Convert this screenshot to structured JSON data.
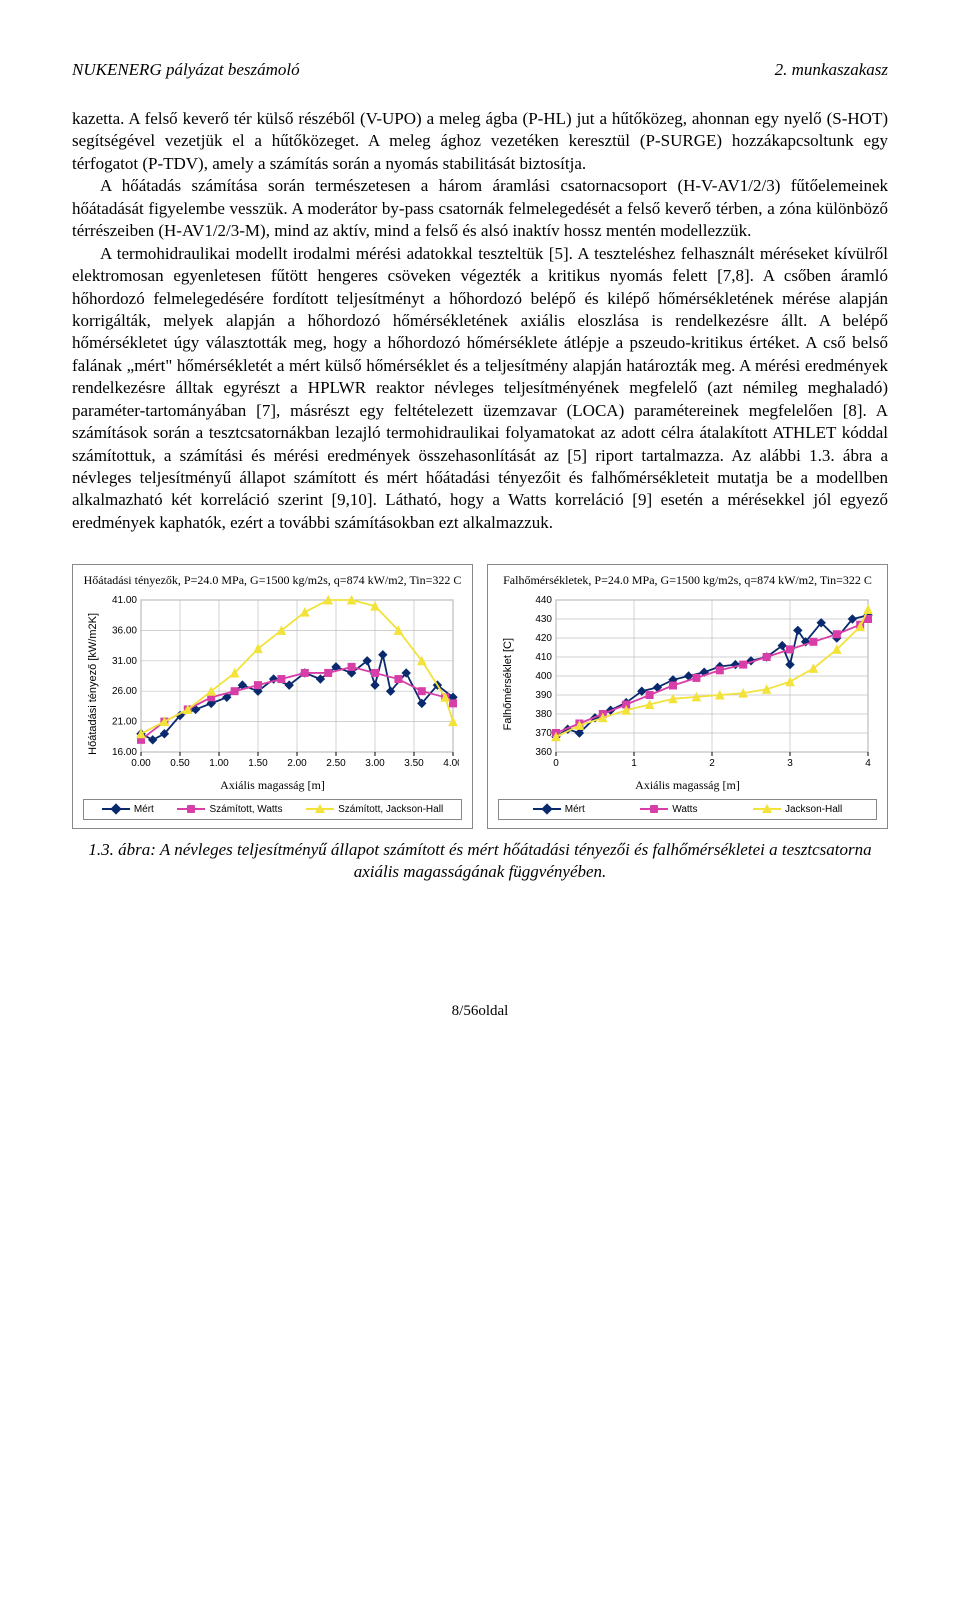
{
  "header": {
    "left": "NUKENERG pályázat beszámoló",
    "right": "2. munkaszakasz"
  },
  "paragraphs": {
    "p1": "kazetta. A felső keverő tér külső részéből (V-UPO) a meleg ágba (P-HL) jut a hűtőközeg, ahonnan egy nyelő (S-HOT) segítségével vezetjük el a hűtőközeget. A meleg ághoz vezetéken keresztül (P-SURGE) hozzákapcsoltunk egy térfogatot (P-TDV), amely a számítás során a nyomás stabilitását biztosítja.",
    "p2": "A hőátadás számítása során természetesen a három áramlási csatornacsoport (H-V-AV1/2/3) fűtőelemeinek hőátadását figyelembe vesszük. A moderátor by-pass csatornák felmelegedését a felső keverő térben, a zóna különböző térrészeiben (H-AV1/2/3-M), mind az aktív, mind a felső és alsó inaktív hossz mentén modellezzük.",
    "p3": "A termohidraulikai modellt irodalmi mérési adatokkal teszteltük [5]. A teszteléshez felhasznált méréseket kívülről elektromosan egyenletesen fűtött hengeres csöveken végezték a kritikus nyomás felett [7,8]. A csőben áramló hőhordozó felmelegedésére fordított teljesítményt a hőhordozó belépő és kilépő hőmérsékletének mérése alapján korrigálták, melyek alapján a hőhordozó hőmérsékletének axiális eloszlása is rendelkezésre állt. A belépő hőmérsékletet úgy választották meg, hogy a hőhordozó hőmérséklete átlépje a pszeudo-kritikus értéket. A cső belső falának „mért\" hőmérsékletét a mért külső hőmérséklet és a teljesítmény alapján határozták meg. A mérési eredmények rendelkezésre álltak egyrészt a HPLWR reaktor névleges teljesítményének megfelelő (azt némileg meghaladó) paraméter-tartományában [7], másrészt egy feltételezett üzemzavar (LOCA) paramétereinek megfelelően [8]. A számítások során a tesztcsatornákban lezajló termohidraulikai folyamatokat az adott célra átalakított ATHLET kóddal számítottuk, a számítási és mérési eredmények összehasonlítását az [5] riport tartalmazza. Az alábbi 1.3. ábra a névleges teljesítményű állapot számított és mért hőátadási tényezőit és falhőmérsékleteit mutatja be a modellben alkalmazható két korreláció szerint [9,10]. Látható, hogy a Watts korreláció [9] esetén a mérésekkel jól egyező eredmények kaphatók, ezért a további számításokban ezt alkalmazzuk."
  },
  "chart1": {
    "type": "line-scatter",
    "title": "Hőátadási tényezők, P=24.0 MPa, G=1500 kg/m2s, q=874 kW/m2, Tin=322 C",
    "xlabel": "Axiális magasság [m]",
    "ylabel": "Hőátadási tényező [kW/m2K]",
    "xlim": [
      0,
      4
    ],
    "ylim": [
      16,
      41
    ],
    "xticks": [
      "0.00",
      "0.50",
      "1.00",
      "1.50",
      "2.00",
      "2.50",
      "3.00",
      "3.50",
      "4.00"
    ],
    "yticks": [
      "16.00",
      "21.00",
      "26.00",
      "31.00",
      "36.00",
      "41.00"
    ],
    "background": "#ffffff",
    "grid_color": "#c0c0c0",
    "series": [
      {
        "name": "Mért",
        "color": "#0a2a6e",
        "marker": "diamond",
        "x": [
          0.0,
          0.15,
          0.3,
          0.5,
          0.7,
          0.9,
          1.1,
          1.3,
          1.5,
          1.7,
          1.9,
          2.1,
          2.3,
          2.5,
          2.7,
          2.9,
          3.0,
          3.1,
          3.2,
          3.4,
          3.6,
          3.8,
          4.0
        ],
        "y": [
          19,
          18,
          19,
          22,
          23,
          24,
          25,
          27,
          26,
          28,
          27,
          29,
          28,
          30,
          29,
          31,
          27,
          32,
          26,
          29,
          24,
          27,
          25
        ]
      },
      {
        "name": "Számított, Watts",
        "color": "#d83ea8",
        "marker": "square",
        "x": [
          0.0,
          0.3,
          0.6,
          0.9,
          1.2,
          1.5,
          1.8,
          2.1,
          2.4,
          2.7,
          3.0,
          3.3,
          3.6,
          3.9,
          4.0
        ],
        "y": [
          18,
          21,
          23,
          25,
          26,
          27,
          28,
          29,
          29,
          30,
          29,
          28,
          26,
          25,
          24
        ]
      },
      {
        "name": "Számított, Jackson-Hall",
        "color": "#f2e23a",
        "marker": "triangle",
        "x": [
          0.0,
          0.3,
          0.6,
          0.9,
          1.2,
          1.5,
          1.8,
          2.1,
          2.4,
          2.7,
          3.0,
          3.3,
          3.6,
          3.9,
          4.0
        ],
        "y": [
          19,
          21,
          23,
          26,
          29,
          33,
          36,
          39,
          41,
          41,
          40,
          36,
          31,
          25,
          21
        ]
      }
    ],
    "legend": [
      "Mért",
      "Számított, Watts",
      "Számított, Jackson-Hall"
    ]
  },
  "chart2": {
    "type": "line-scatter",
    "title": "Falhőmérsékletek, P=24.0 MPa, G=1500 kg/m2s, q=874 kW/m2, Tin=322 C",
    "xlabel": "Axiális magasság [m]",
    "ylabel": "Falhőmérséklet [C]",
    "xlim": [
      0,
      4
    ],
    "ylim": [
      360,
      440
    ],
    "xticks": [
      "0",
      "1",
      "2",
      "3",
      "4"
    ],
    "yticks": [
      "360",
      "370",
      "380",
      "390",
      "400",
      "410",
      "420",
      "430",
      "440"
    ],
    "background": "#ffffff",
    "grid_color": "#c0c0c0",
    "series": [
      {
        "name": "Mért",
        "color": "#0a2a6e",
        "marker": "diamond",
        "x": [
          0.0,
          0.15,
          0.3,
          0.5,
          0.7,
          0.9,
          1.1,
          1.3,
          1.5,
          1.7,
          1.9,
          2.1,
          2.3,
          2.5,
          2.7,
          2.9,
          3.0,
          3.1,
          3.2,
          3.4,
          3.6,
          3.8,
          4.0
        ],
        "y": [
          368,
          372,
          370,
          378,
          382,
          386,
          392,
          394,
          398,
          400,
          402,
          405,
          406,
          408,
          410,
          416,
          406,
          424,
          418,
          428,
          420,
          430,
          432
        ]
      },
      {
        "name": "Watts",
        "color": "#d83ea8",
        "marker": "square",
        "x": [
          0.0,
          0.3,
          0.6,
          0.9,
          1.2,
          1.5,
          1.8,
          2.1,
          2.4,
          2.7,
          3.0,
          3.3,
          3.6,
          3.9,
          4.0
        ],
        "y": [
          370,
          375,
          380,
          385,
          390,
          395,
          399,
          403,
          406,
          410,
          414,
          418,
          422,
          427,
          430
        ]
      },
      {
        "name": "Jackson-Hall",
        "color": "#f2e23a",
        "marker": "triangle",
        "x": [
          0.0,
          0.3,
          0.6,
          0.9,
          1.2,
          1.5,
          1.8,
          2.1,
          2.4,
          2.7,
          3.0,
          3.3,
          3.6,
          3.9,
          4.0
        ],
        "y": [
          368,
          374,
          378,
          382,
          385,
          388,
          389,
          390,
          391,
          393,
          397,
          404,
          414,
          426,
          435
        ]
      }
    ],
    "legend": [
      "Mért",
      "Watts",
      "Jackson-Hall"
    ]
  },
  "caption": "1.3. ábra: A névleges teljesítményű állapot számított és mért hőátadási tényezői és falhőmérsékletei a tesztcsatorna axiális magasságának függvényében.",
  "footer": "8/56oldal"
}
